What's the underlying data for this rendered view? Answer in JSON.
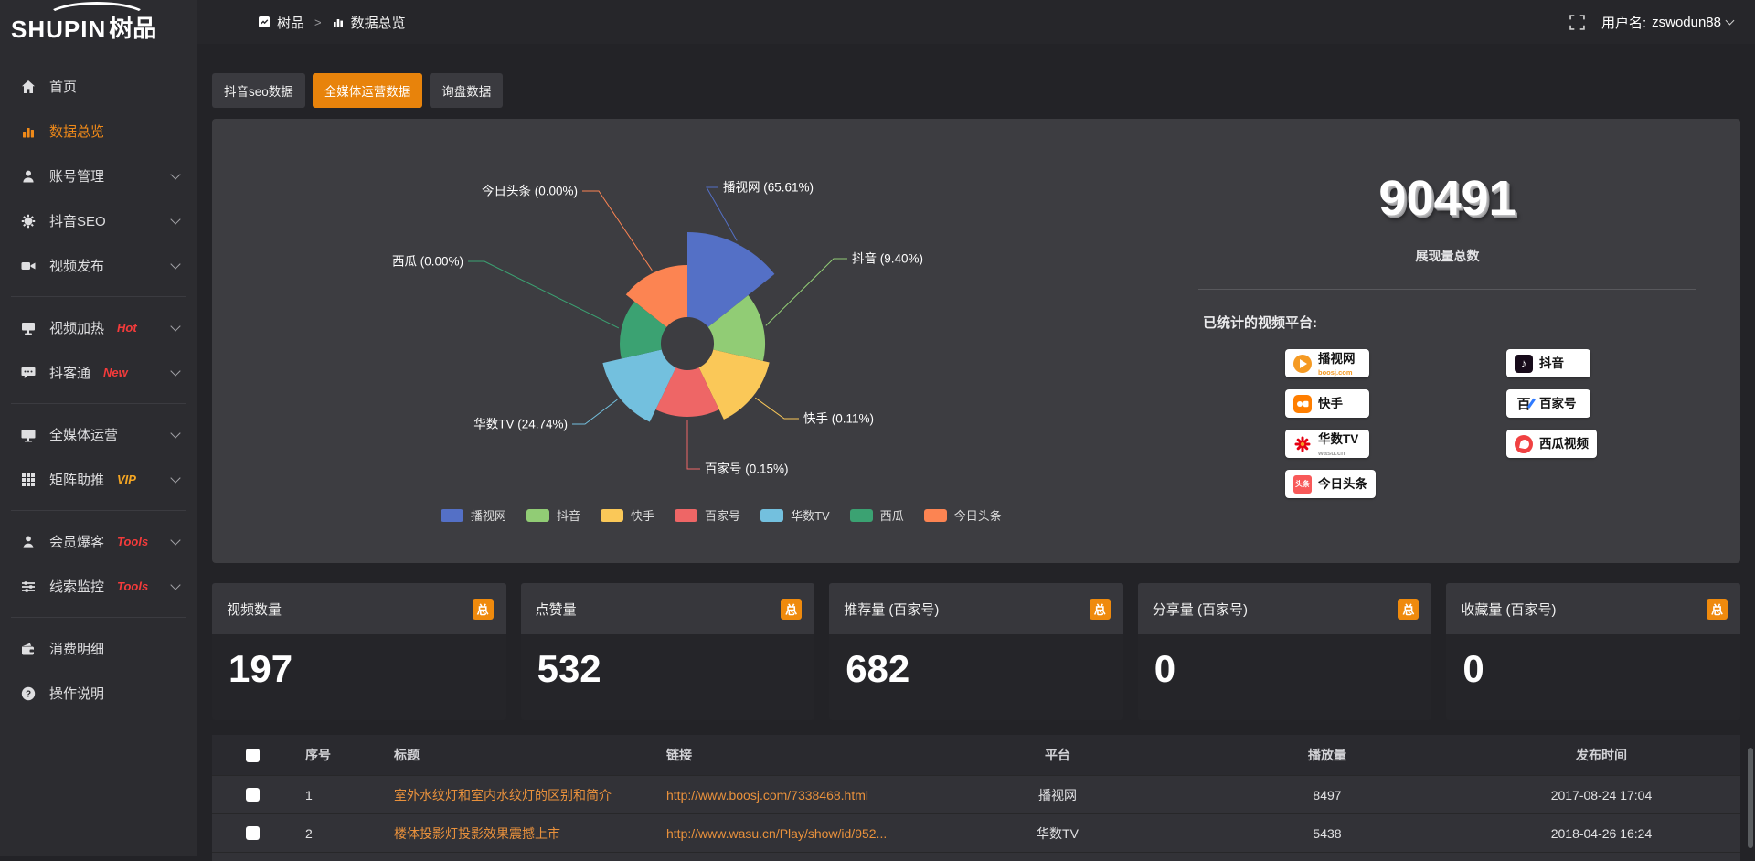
{
  "logo": {
    "brand_en": "SHUPIN",
    "brand_zh": "树品"
  },
  "topbar": {
    "breadcrumb_app": "树品",
    "breadcrumb_sep": ">",
    "breadcrumb_page": "数据总览",
    "username_label": "用户名:",
    "username": "zswodun88"
  },
  "sidebar": {
    "items": [
      {
        "label": "首页"
      },
      {
        "label": "数据总览"
      },
      {
        "label": "账号管理"
      },
      {
        "label": "抖音SEO"
      },
      {
        "label": "视频发布"
      },
      {
        "label": "视频加热",
        "badge": "Hot"
      },
      {
        "label": "抖客通",
        "badge": "New"
      },
      {
        "label": "全媒体运营"
      },
      {
        "label": "矩阵助推",
        "badge": "VIP"
      },
      {
        "label": "会员爆客",
        "badge": "Tools"
      },
      {
        "label": "线索监控",
        "badge": "Tools"
      },
      {
        "label": "消费明细"
      },
      {
        "label": "操作说明"
      }
    ]
  },
  "tabs": [
    {
      "label": "抖音seo数据",
      "active": false
    },
    {
      "label": "全媒体运营数据",
      "active": true
    },
    {
      "label": "询盘数据",
      "active": false
    }
  ],
  "chart_data": {
    "type": "pie",
    "variant": "nightingale-rose",
    "legend_position": "bottom",
    "title": "",
    "items": [
      {
        "name": "播视网",
        "value_pct": 65.61,
        "display": "播视网 (65.61%)"
      },
      {
        "name": "抖音",
        "value_pct": 9.4,
        "display": "抖音 (9.40%)"
      },
      {
        "name": "快手",
        "value_pct": 0.11,
        "display": "快手 (0.11%)"
      },
      {
        "name": "百家号",
        "value_pct": 0.15,
        "display": "百家号 (0.15%)"
      },
      {
        "name": "华数TV",
        "value_pct": 24.74,
        "display": "华数TV (24.74%)"
      },
      {
        "name": "西瓜",
        "value_pct": 0.0,
        "display": "西瓜 (0.00%)"
      },
      {
        "name": "今日头条",
        "value_pct": 0.0,
        "display": "今日头条 (0.00%)"
      }
    ],
    "colors": [
      "#5470c6",
      "#91cc75",
      "#fac858",
      "#ee6666",
      "#73c0de",
      "#3ba272",
      "#fc8452"
    ]
  },
  "summary": {
    "total_value": "90491",
    "total_label": "展现量总数",
    "platforms_title": "已统计的视频平台:",
    "platforms_left": [
      {
        "name": "播视网",
        "sub": "boosj.com"
      },
      {
        "name": "快手",
        "sub": ""
      },
      {
        "name": "华数TV",
        "sub": "wasu.cn"
      },
      {
        "name": "今日头条",
        "sub": ""
      }
    ],
    "platforms_right": [
      {
        "name": "抖音",
        "sub": ""
      },
      {
        "name": "百家号",
        "sub": ""
      },
      {
        "name": "西瓜视频",
        "sub": ""
      }
    ]
  },
  "stat_cards": [
    {
      "title": "视频数量",
      "badge": "总",
      "value": "197"
    },
    {
      "title": "点赞量",
      "badge": "总",
      "value": "532"
    },
    {
      "title": "推荐量 (百家号)",
      "badge": "总",
      "value": "682"
    },
    {
      "title": "分享量 (百家号)",
      "badge": "总",
      "value": "0"
    },
    {
      "title": "收藏量 (百家号)",
      "badge": "总",
      "value": "0"
    }
  ],
  "table": {
    "headers": [
      "序号",
      "标题",
      "链接",
      "平台",
      "播放量",
      "发布时间"
    ],
    "rows": [
      {
        "index": "1",
        "title": "室外水纹灯和室内水纹灯的区别和简介",
        "link": "http://www.boosj.com/7338468.html",
        "platform": "播视网",
        "views": "8497",
        "published": "2017-08-24 17:04"
      },
      {
        "index": "2",
        "title": "楼体投影灯投影效果震撼上市",
        "link": "http://www.wasu.cn/Play/show/id/952...",
        "platform": "华数TV",
        "views": "5438",
        "published": "2018-04-26 16:24"
      }
    ]
  }
}
